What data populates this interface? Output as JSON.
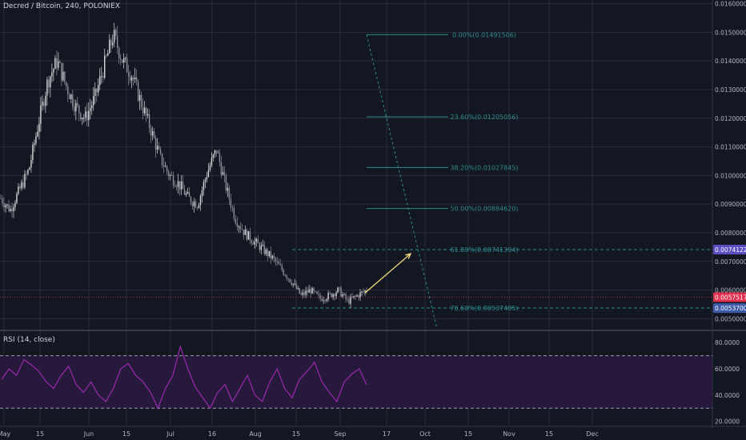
{
  "header": {
    "title": "Decred / Bitcoin, 240, POLONIEX"
  },
  "rsi": {
    "label": "RSI (14, close)",
    "ticks": [
      "80.0000",
      "60.0000",
      "40.0000",
      "20.0000"
    ]
  },
  "price_axis": {
    "ticks": [
      "0.01600000",
      "0.01500000",
      "0.01400000",
      "0.01300000",
      "0.01200000",
      "0.01100000",
      "0.01000000",
      "0.00900000",
      "0.00800000",
      "0.00700000",
      "0.00600000",
      "0.00500000"
    ],
    "badges": [
      {
        "text": "0.00741220",
        "price": 0.0074122,
        "color": "#5b4ec5"
      },
      {
        "text": "0.00575173",
        "price": 0.00575173,
        "color": "#e0304e"
      },
      {
        "text": "0.00537005",
        "price": 0.00537005,
        "color": "#3c5aa8"
      }
    ]
  },
  "time_axis": [
    "May",
    "15",
    "Jun",
    "15",
    "Jul",
    "16",
    "Aug",
    "15",
    "Sep",
    "17",
    "Oct",
    "15",
    "Nov",
    "15",
    "Dec"
  ],
  "fib_levels": [
    {
      "label": "0.00%(0.01491506)",
      "price": 0.01491506
    },
    {
      "label": "23.60%(0.01205056)",
      "price": 0.01205056
    },
    {
      "label": "38.20%(0.01027845)",
      "price": 0.01027845
    },
    {
      "label": "50.00%(0.00884620)",
      "price": 0.0088462
    },
    {
      "label": "61.80%(0.00741394)",
      "price": 0.00741394
    },
    {
      "label": "78.60%(0.00537485)",
      "price": 0.00537485
    }
  ],
  "colors": {
    "background": "#131722",
    "grid": "#2a2e39",
    "candle": "#c8c8c8",
    "fib": "#2e8b8b",
    "arrow": "#f5e07a",
    "rsi_line": "#9c27b0",
    "rsi_band": "#2a1a3e",
    "last_price": "#e0304e"
  },
  "chart_data": [
    {
      "type": "candlestick",
      "title": "Decred / Bitcoin, 240, POLONIEX",
      "x_categories": [
        "May",
        "15",
        "Jun",
        "15",
        "Jul",
        "16",
        "Aug",
        "15",
        "Sep"
      ],
      "ylim": [
        0.0042,
        0.0163
      ],
      "close_path_approx": [
        0.0092,
        0.0088,
        0.0095,
        0.0102,
        0.0118,
        0.0133,
        0.014,
        0.0131,
        0.0124,
        0.012,
        0.0127,
        0.0138,
        0.0149,
        0.014,
        0.0135,
        0.0125,
        0.0116,
        0.0106,
        0.01,
        0.0097,
        0.0092,
        0.009,
        0.0101,
        0.0109,
        0.0096,
        0.0085,
        0.008,
        0.0077,
        0.0074,
        0.0071,
        0.0067,
        0.0063,
        0.0058,
        0.006,
        0.0057,
        0.0058,
        0.006,
        0.0056,
        0.0058,
        0.006
      ],
      "last_price": 0.00575173,
      "grid": true
    },
    {
      "type": "line",
      "title": "RSI (14, close)",
      "ylim": [
        15,
        85
      ],
      "bands": [
        30,
        70
      ],
      "values": [
        52,
        60,
        55,
        67,
        63,
        58,
        50,
        45,
        55,
        62,
        48,
        42,
        50,
        40,
        35,
        45,
        60,
        64,
        55,
        50,
        42,
        30,
        45,
        55,
        77,
        60,
        46,
        38,
        30,
        42,
        48,
        35,
        45,
        55,
        40,
        35,
        50,
        60,
        45,
        38,
        52,
        58,
        65,
        50,
        42,
        35,
        50,
        56,
        60,
        48
      ]
    }
  ]
}
